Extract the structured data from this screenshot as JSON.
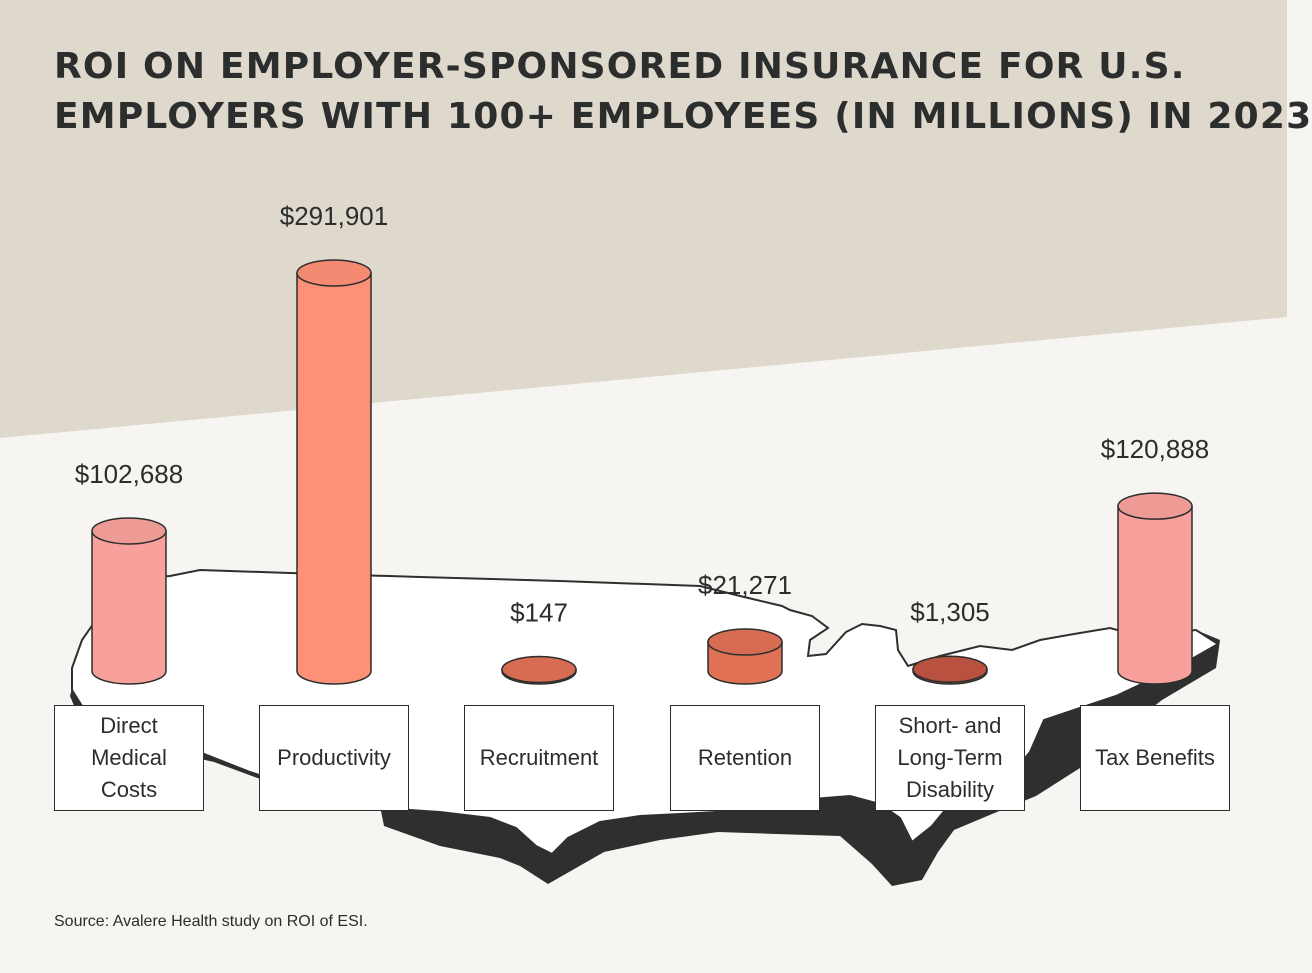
{
  "header": {
    "title_line1": "ROI ON EMPLOYER-SPONSORED INSURANCE FOR U.S.",
    "title_line2": "EMPLOYERS WITH 100+ EMPLOYEES (IN MILLIONS) IN 2023"
  },
  "chart_data": {
    "type": "bar",
    "title": "ROI ON EMPLOYER-SPONSORED INSURANCE FOR U.S. EMPLOYERS WITH 100+ EMPLOYEES (IN MILLIONS) IN 2023",
    "categories": [
      "Direct Medical Costs",
      "Productivity",
      "Recruitment",
      "Retention",
      "Short- and Long-Term Disability",
      "Tax Benefits"
    ],
    "category_lines": [
      [
        "Direct",
        "Medical",
        "Costs"
      ],
      [
        "Productivity"
      ],
      [
        "Recruitment"
      ],
      [
        "Retention"
      ],
      [
        "Short- and",
        "Long-Term",
        "Disability"
      ],
      [
        "Tax Benefits"
      ]
    ],
    "values": [
      102688,
      291901,
      147,
      21271,
      1305,
      120888
    ],
    "value_labels": [
      "$102,688",
      "$291,901",
      "$147",
      "$21,271",
      "$1,305",
      "$120,888"
    ],
    "bar_colors": [
      "#f8a19c",
      "#fe9077",
      "#e07155",
      "#e07155",
      "#c05442",
      "#f8a19c"
    ],
    "ylim": [
      0,
      291901
    ],
    "grid": false,
    "xlabel": "",
    "ylabel": ""
  },
  "footer": {
    "source": "Source: Avalere Health study on ROI of ESI."
  }
}
